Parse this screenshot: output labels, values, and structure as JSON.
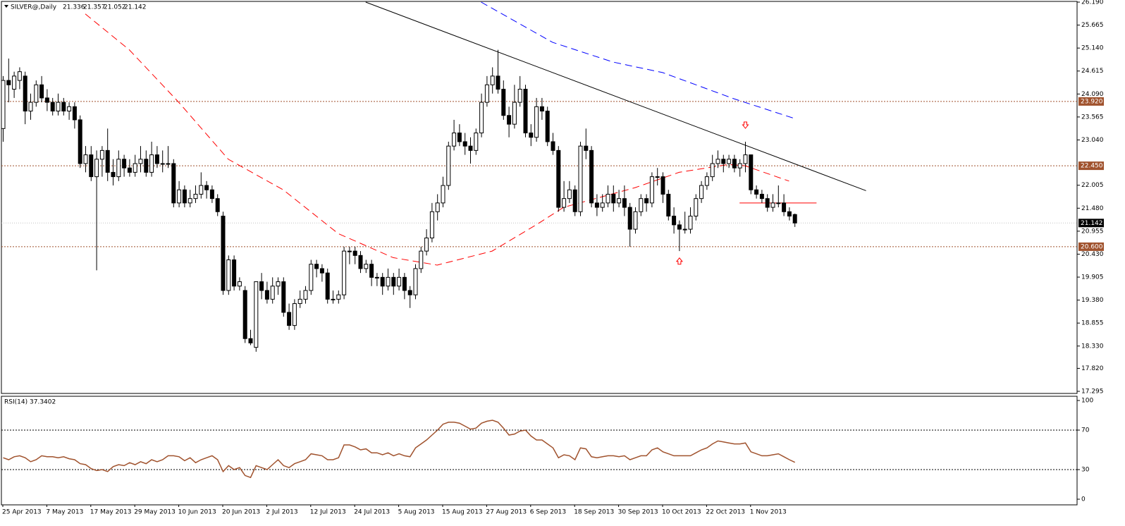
{
  "chart_data": {
    "type": "candlestick",
    "title": "SILVER@,Daily",
    "up_color": "#ffffff",
    "down_color": "#000000",
    "categories": [
      "25 Apr 2013",
      null,
      null,
      null,
      null,
      null,
      null,
      null,
      "7 May 2013",
      null,
      null,
      null,
      null,
      null,
      null,
      null,
      "17 May 2013",
      null,
      null,
      null,
      null,
      null,
      null,
      null,
      "29 May 2013",
      null,
      null,
      null,
      null,
      null,
      null,
      null,
      "10 Jun 2013",
      null,
      null,
      null,
      null,
      null,
      null,
      null,
      "20 Jun 2013",
      null,
      null,
      null,
      null,
      null,
      null,
      null,
      "2 Jul 2013",
      null,
      null,
      null,
      null,
      null,
      null,
      null,
      "12 Jul 2013",
      null,
      null,
      null,
      null,
      null,
      null,
      null,
      "24 Jul 2013",
      null,
      null,
      null,
      null,
      null,
      null,
      null,
      "5 Aug 2013",
      null,
      null,
      null,
      null,
      null,
      null,
      null,
      "15 Aug 2013",
      null,
      null,
      null,
      null,
      null,
      null,
      null,
      "27 Aug 2013",
      null,
      null,
      null,
      null,
      null,
      null,
      null,
      "6 Sep 2013",
      null,
      null,
      null,
      null,
      null,
      null,
      null,
      "18 Sep 2013",
      null,
      null,
      null,
      null,
      null,
      null,
      null,
      "30 Sep 2013",
      null,
      null,
      null,
      null,
      null,
      null,
      null,
      "10 Oct 2013",
      null,
      null,
      null,
      null,
      null,
      null,
      null,
      "22 Oct 2013",
      null,
      null,
      null,
      null,
      null,
      null,
      null,
      "1 Nov 2013",
      null,
      null,
      null,
      null,
      null,
      null,
      null,
      null
    ],
    "candles": [
      [
        23.3,
        24.5,
        23.0,
        24.4
      ],
      [
        24.4,
        24.9,
        23.9,
        24.3
      ],
      [
        24.2,
        24.6,
        24.0,
        24.5
      ],
      [
        24.4,
        24.7,
        24.2,
        24.6
      ],
      [
        24.5,
        24.6,
        23.4,
        23.7
      ],
      [
        23.7,
        24.1,
        23.5,
        23.9
      ],
      [
        23.9,
        24.4,
        23.8,
        24.3
      ],
      [
        24.3,
        24.5,
        23.9,
        24.0
      ],
      [
        24.0,
        24.2,
        23.7,
        23.9
      ],
      [
        23.9,
        24.0,
        23.6,
        23.7
      ],
      [
        23.7,
        24.1,
        23.6,
        23.9
      ],
      [
        23.9,
        24.0,
        23.6,
        23.7
      ],
      [
        23.7,
        23.9,
        23.5,
        23.8
      ],
      [
        23.8,
        23.9,
        23.3,
        23.5
      ],
      [
        23.5,
        23.6,
        22.4,
        22.5
      ],
      [
        22.5,
        22.9,
        22.3,
        22.7
      ],
      [
        22.7,
        22.9,
        22.1,
        22.2
      ],
      [
        22.2,
        22.8,
        20.06,
        22.6
      ],
      [
        22.6,
        22.9,
        22.2,
        22.8
      ],
      [
        22.8,
        23.3,
        22.1,
        22.3
      ],
      [
        22.3,
        22.6,
        22.0,
        22.2
      ],
      [
        22.2,
        22.8,
        22.1,
        22.6
      ],
      [
        22.6,
        22.7,
        22.2,
        22.4
      ],
      [
        22.4,
        22.6,
        22.2,
        22.3
      ],
      [
        22.3,
        22.7,
        22.2,
        22.5
      ],
      [
        22.5,
        22.9,
        22.3,
        22.6
      ],
      [
        22.6,
        22.8,
        22.2,
        22.3
      ],
      [
        22.3,
        23.0,
        22.2,
        22.7
      ],
      [
        22.7,
        22.9,
        22.4,
        22.5
      ],
      [
        22.5,
        22.8,
        22.3,
        22.5
      ],
      [
        22.5,
        22.9,
        22.4,
        22.5
      ],
      [
        22.5,
        22.6,
        21.5,
        21.6
      ],
      [
        21.6,
        22.1,
        21.5,
        21.9
      ],
      [
        21.9,
        22.0,
        21.5,
        21.6
      ],
      [
        21.6,
        21.9,
        21.5,
        21.7
      ],
      [
        21.7,
        22.0,
        21.6,
        21.8
      ],
      [
        21.8,
        22.3,
        21.7,
        22.0
      ],
      [
        22.0,
        22.1,
        21.7,
        21.9
      ],
      [
        21.9,
        22.0,
        21.6,
        21.7
      ],
      [
        21.7,
        21.8,
        21.3,
        21.4
      ],
      [
        21.3,
        21.4,
        19.5,
        19.6
      ],
      [
        19.6,
        20.4,
        19.5,
        20.3
      ],
      [
        20.3,
        20.4,
        19.6,
        19.7
      ],
      [
        19.7,
        19.9,
        19.6,
        19.8
      ],
      [
        19.6,
        19.7,
        18.4,
        18.5
      ],
      [
        18.5,
        18.7,
        18.35,
        18.4
      ],
      [
        18.3,
        19.8,
        18.2,
        19.8
      ],
      [
        19.8,
        20.0,
        19.4,
        19.6
      ],
      [
        19.6,
        19.8,
        19.3,
        19.4
      ],
      [
        19.4,
        19.9,
        19.3,
        19.7
      ],
      [
        19.7,
        19.9,
        19.5,
        19.8
      ],
      [
        19.8,
        19.9,
        19.0,
        19.1
      ],
      [
        19.1,
        19.3,
        18.7,
        18.8
      ],
      [
        18.8,
        19.4,
        18.7,
        19.3
      ],
      [
        19.3,
        19.6,
        19.2,
        19.4
      ],
      [
        19.4,
        19.7,
        19.3,
        19.6
      ],
      [
        19.6,
        20.3,
        19.5,
        20.2
      ],
      [
        20.2,
        20.3,
        19.9,
        20.1
      ],
      [
        20.1,
        20.2,
        19.8,
        20.0
      ],
      [
        20.0,
        20.1,
        19.3,
        19.4
      ],
      [
        19.4,
        19.6,
        19.3,
        19.4
      ],
      [
        19.4,
        19.6,
        19.3,
        19.5
      ],
      [
        19.5,
        20.6,
        19.4,
        20.5
      ],
      [
        20.5,
        20.6,
        20.2,
        20.5
      ],
      [
        20.5,
        20.6,
        20.2,
        20.4
      ],
      [
        20.4,
        20.5,
        20.0,
        20.1
      ],
      [
        20.1,
        20.3,
        20.0,
        20.2
      ],
      [
        20.2,
        20.3,
        19.7,
        19.9
      ],
      [
        19.9,
        20.0,
        19.7,
        19.9
      ],
      [
        19.9,
        20.0,
        19.5,
        19.7
      ],
      [
        19.7,
        20.1,
        19.6,
        19.9
      ],
      [
        19.9,
        20.0,
        19.5,
        19.7
      ],
      [
        19.7,
        20.1,
        19.6,
        19.9
      ],
      [
        19.9,
        20.0,
        19.4,
        19.6
      ],
      [
        19.6,
        19.7,
        19.2,
        19.5
      ],
      [
        19.5,
        20.2,
        19.4,
        20.1
      ],
      [
        20.1,
        20.6,
        20.0,
        20.5
      ],
      [
        20.5,
        21.0,
        20.4,
        20.8
      ],
      [
        20.8,
        21.6,
        20.7,
        21.4
      ],
      [
        21.4,
        21.8,
        21.2,
        21.6
      ],
      [
        21.6,
        22.2,
        21.5,
        22.0
      ],
      [
        22.0,
        23.0,
        21.9,
        22.9
      ],
      [
        22.9,
        23.5,
        22.8,
        23.2
      ],
      [
        23.2,
        23.4,
        22.9,
        23.0
      ],
      [
        23.0,
        23.2,
        22.7,
        22.9
      ],
      [
        22.9,
        23.1,
        22.5,
        22.8
      ],
      [
        22.8,
        23.3,
        22.7,
        23.2
      ],
      [
        23.2,
        24.1,
        23.1,
        23.9
      ],
      [
        23.9,
        24.5,
        23.8,
        24.3
      ],
      [
        24.3,
        24.7,
        24.1,
        24.5
      ],
      [
        24.5,
        25.1,
        24.1,
        24.2
      ],
      [
        24.2,
        24.4,
        23.5,
        23.6
      ],
      [
        23.6,
        23.8,
        23.1,
        23.4
      ],
      [
        23.4,
        24.3,
        23.3,
        23.9
      ],
      [
        23.9,
        24.5,
        23.8,
        24.2
      ],
      [
        24.2,
        24.3,
        23.1,
        23.2
      ],
      [
        23.2,
        23.4,
        22.9,
        23.1
      ],
      [
        23.1,
        24.0,
        23.0,
        23.8
      ],
      [
        23.8,
        24.0,
        23.5,
        23.7
      ],
      [
        23.7,
        23.8,
        22.9,
        23.0
      ],
      [
        23.0,
        23.2,
        22.7,
        22.8
      ],
      [
        22.8,
        22.9,
        21.4,
        21.5
      ],
      [
        21.5,
        22.1,
        21.4,
        21.7
      ],
      [
        21.7,
        22.1,
        21.6,
        21.9
      ],
      [
        21.9,
        22.0,
        21.3,
        21.4
      ],
      [
        21.4,
        23.0,
        21.3,
        22.9
      ],
      [
        22.9,
        23.3,
        22.6,
        22.8
      ],
      [
        22.8,
        22.9,
        21.5,
        21.6
      ],
      [
        21.6,
        21.8,
        21.3,
        21.5
      ],
      [
        21.5,
        21.8,
        21.4,
        21.6
      ],
      [
        21.6,
        22.0,
        21.5,
        21.8
      ],
      [
        21.8,
        22.0,
        21.4,
        21.6
      ],
      [
        21.6,
        21.9,
        21.5,
        21.7
      ],
      [
        21.7,
        22.0,
        21.3,
        21.5
      ],
      [
        21.5,
        21.6,
        20.6,
        21.0
      ],
      [
        21.0,
        21.5,
        20.9,
        21.4
      ],
      [
        21.4,
        21.8,
        21.3,
        21.7
      ],
      [
        21.7,
        21.8,
        21.4,
        21.6
      ],
      [
        21.6,
        22.3,
        21.5,
        22.2
      ],
      [
        22.2,
        22.4,
        22.0,
        22.2
      ],
      [
        22.2,
        22.3,
        21.6,
        21.8
      ],
      [
        21.8,
        21.9,
        21.2,
        21.3
      ],
      [
        21.3,
        21.5,
        20.9,
        21.1
      ],
      [
        21.1,
        21.2,
        20.5,
        21.0
      ],
      [
        21.0,
        21.4,
        20.9,
        21.0
      ],
      [
        21.0,
        21.5,
        20.9,
        21.3
      ],
      [
        21.3,
        21.8,
        21.2,
        21.7
      ],
      [
        21.7,
        22.1,
        21.6,
        22.0
      ],
      [
        22.0,
        22.3,
        21.9,
        22.2
      ],
      [
        22.2,
        22.7,
        22.1,
        22.5
      ],
      [
        22.5,
        22.8,
        22.4,
        22.6
      ],
      [
        22.6,
        22.7,
        22.3,
        22.5
      ],
      [
        22.5,
        22.7,
        22.4,
        22.6
      ],
      [
        22.6,
        22.7,
        22.3,
        22.4
      ],
      [
        22.4,
        22.6,
        22.2,
        22.5
      ],
      [
        22.5,
        23.0,
        22.3,
        22.7
      ],
      [
        22.7,
        22.7,
        21.8,
        21.9
      ],
      [
        21.9,
        22.0,
        21.7,
        21.8
      ],
      [
        21.8,
        21.9,
        21.6,
        21.7
      ],
      [
        21.7,
        21.8,
        21.4,
        21.5
      ],
      [
        21.5,
        21.8,
        21.4,
        21.6
      ],
      [
        21.6,
        22.0,
        21.5,
        21.6
      ],
      [
        21.6,
        21.8,
        21.3,
        21.4
      ],
      [
        21.4,
        21.5,
        21.2,
        21.3
      ],
      [
        21.336,
        21.357,
        21.052,
        21.142
      ]
    ],
    "ylim": [
      17.295,
      26.19
    ],
    "yticks": [
      {
        "value": 26.19,
        "label": "26.190"
      },
      25.665,
      {
        "value": 25.14,
        "label": "25.140"
      },
      24.615,
      {
        "value": 24.09,
        "label": "24.090"
      },
      23.565,
      {
        "value": 23.04,
        "label": "23.040"
      },
      22.005,
      {
        "value": 21.48,
        "label": "21.480"
      },
      20.955,
      {
        "value": 20.43,
        "label": "20.430"
      },
      19.905,
      {
        "value": 19.38,
        "label": "19.380"
      },
      18.855,
      {
        "value": 18.33,
        "label": "18.330"
      },
      {
        "value": 17.82,
        "label": "17.820"
      },
      17.295
    ],
    "levels": {
      "values": [
        23.92,
        22.45,
        20.6
      ],
      "value_labels": [
        "23.920",
        "22.450",
        "20.600"
      ],
      "color": "#a0522d"
    },
    "overlays": [
      {
        "x": [
          15,
          23,
          32,
          41,
          51,
          61,
          71,
          79,
          89,
          97,
          102,
          115,
          123,
          132,
          135,
          143
        ],
        "values": [
          25.92,
          25.1,
          23.9,
          22.6,
          21.9,
          20.9,
          20.35,
          20.18,
          20.5,
          21.1,
          21.5,
          21.95,
          22.3,
          22.48,
          22.45,
          22.1
        ],
        "color": "#ff0000",
        "style": "dashed"
      },
      {
        "x": [
          87,
          100,
          111,
          120,
          133,
          144
        ],
        "values": [
          26.19,
          25.27,
          24.82,
          24.58,
          23.98,
          23.53
        ],
        "color": "#0000ff",
        "style": "dashed"
      },
      {
        "x": [
          66,
          157
        ],
        "values": [
          26.19,
          21.88
        ],
        "color": "#000000",
        "style": "solid"
      },
      {
        "x": [
          134,
          148
        ],
        "values": [
          21.6,
          21.6
        ],
        "color": "#ff0000",
        "style": "solid"
      }
    ],
    "arrows": [
      {
        "x": 135,
        "value": 23.37,
        "direction": "down",
        "color": "#ff0000"
      },
      {
        "x": 123,
        "value": 20.28,
        "direction": "up",
        "color": "#ff0000"
      }
    ],
    "rsi": {
      "type": "line",
      "name": "RSI(14)",
      "color": "#a0522d",
      "ylim": [
        0,
        100
      ],
      "yticks": [
        100,
        70,
        30,
        0
      ],
      "values": [
        42,
        40,
        43,
        44,
        42,
        38,
        40,
        44,
        43,
        43,
        42,
        43,
        41,
        40,
        36,
        35,
        31,
        29,
        30,
        28,
        33,
        35,
        34,
        37,
        35,
        38,
        36,
        40,
        38,
        40,
        44,
        44,
        43,
        39,
        42,
        37,
        40,
        42,
        44,
        40,
        28,
        34,
        30,
        32,
        24,
        22,
        34,
        32,
        30,
        35,
        40,
        34,
        32,
        36,
        38,
        40,
        46,
        45,
        44,
        40,
        40,
        42,
        55,
        55,
        53,
        50,
        51,
        47,
        47,
        45,
        47,
        44,
        46,
        44,
        43,
        52,
        56,
        60,
        65,
        70,
        76,
        78,
        78,
        77,
        74,
        71,
        72,
        77,
        79,
        80,
        78,
        72,
        65,
        66,
        69,
        70,
        64,
        60,
        60,
        56,
        52,
        42,
        45,
        44,
        40,
        52,
        51,
        43,
        42,
        43,
        44,
        44,
        43,
        44,
        40,
        42,
        44,
        44,
        50,
        52,
        48,
        46,
        44,
        44,
        44,
        44,
        47,
        50,
        52,
        56,
        59,
        58,
        57,
        56,
        56,
        57,
        48,
        46,
        44,
        44,
        45,
        46,
        43,
        40,
        37.3402
      ]
    }
  }
}
